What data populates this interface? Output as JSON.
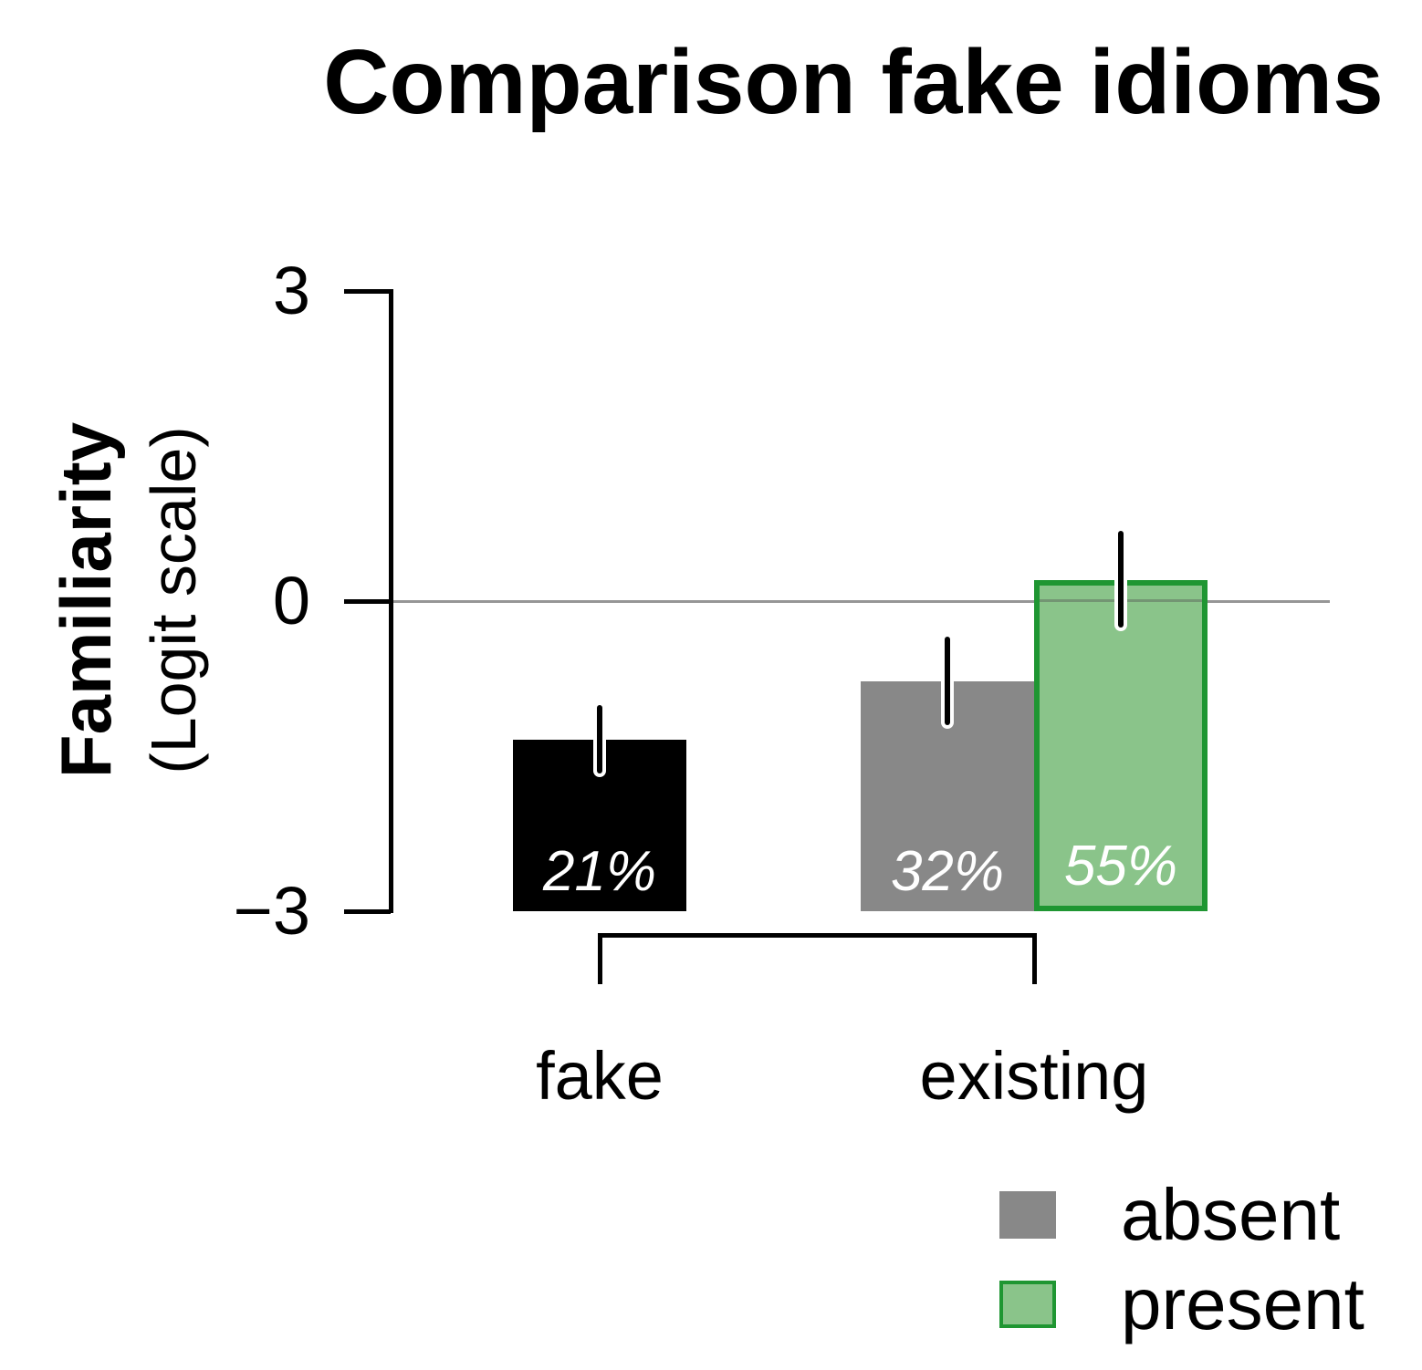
{
  "chart_data": {
    "type": "bar",
    "title": "Comparison fake idioms",
    "ylabel": "Familiarity",
    "ylabel_sub": "(Logit scale)",
    "ylim": [
      -3,
      3
    ],
    "yticks": [
      3,
      0,
      -3
    ],
    "reference_line_y": 0,
    "grid": false,
    "legend_position": "bottom-right",
    "groups": [
      {
        "label": "fake",
        "bars": [
          {
            "series": "fake",
            "value": -1.34,
            "ci": [
              -1.67,
              -1.01
            ],
            "pct_label": "21%",
            "fill": "#000000",
            "border": null,
            "label_color": "#ffffff"
          }
        ]
      },
      {
        "label": "existing",
        "bars": [
          {
            "series": "absent",
            "value": -0.78,
            "ci": [
              -1.2,
              -0.34
            ],
            "pct_label": "32%",
            "fill": "#888888",
            "border": null,
            "label_color": "#ffffff"
          },
          {
            "series": "present",
            "value": 0.2,
            "ci": [
              -0.26,
              0.68
            ],
            "pct_label": "55%",
            "fill": "#8AC48A",
            "border": "#1F9632",
            "label_color": "#ffffff"
          }
        ]
      }
    ],
    "legend": {
      "items": [
        {
          "label": "absent",
          "fill": "#888888",
          "border": "#888888"
        },
        {
          "label": "present",
          "fill": "#8AC48A",
          "border": "#1F9632"
        }
      ]
    },
    "comparison_bracket": {
      "groups": [
        "fake",
        "existing"
      ]
    }
  },
  "colors": {
    "background": "#ffffff",
    "axis": "#000000",
    "zero_line": "#969696",
    "text": "#000000",
    "bar_label_text": "#ffffff"
  }
}
